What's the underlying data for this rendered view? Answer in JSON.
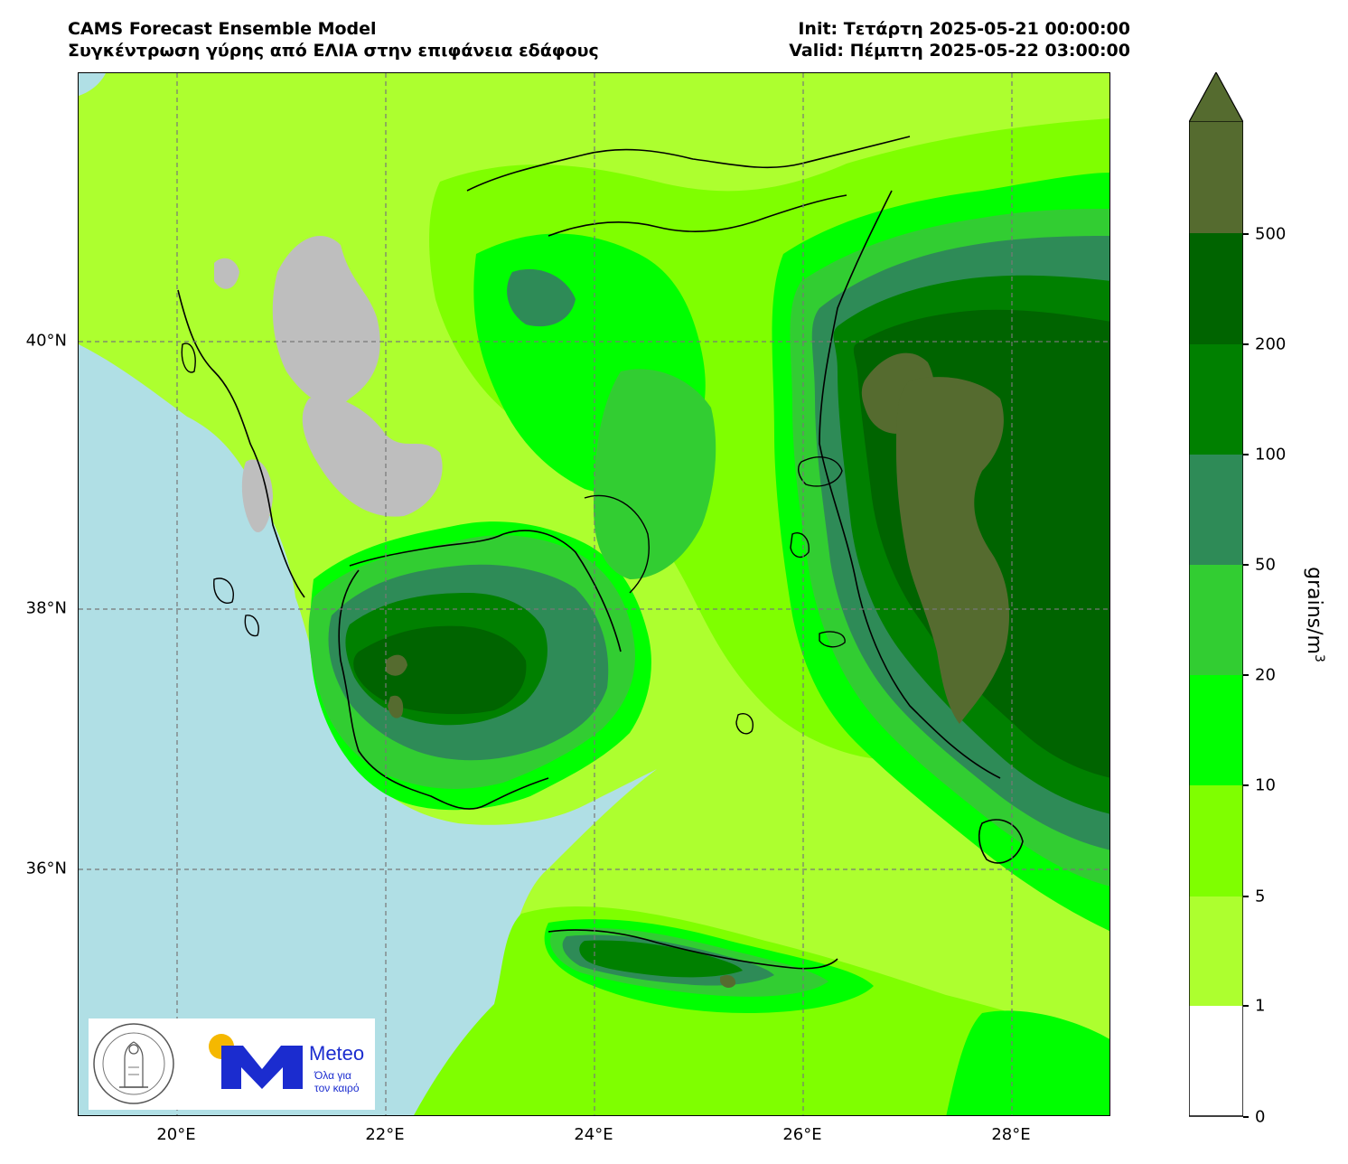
{
  "header": {
    "model_name": "CAMS Forecast Ensemble Model",
    "variable_title": "Συγκέντρωση γύρης από ΕΛΙΑ στην επιφάνεια εδάφους",
    "init_text": "Init: Τετάρτη 2025-05-21 00:00:00",
    "valid_text": "Valid: Πέμπτη 2025-05-22 03:00:00"
  },
  "map": {
    "longitude_ticks": [
      "20°E",
      "22°E",
      "24°E",
      "26°E",
      "28°E"
    ],
    "latitude_ticks": [
      "40°N",
      "38°N",
      "36°N"
    ],
    "sea_color": "#b0dfe5",
    "missing_color": "#bebebe",
    "coast_color": "#000000",
    "gridline_style": "dashed"
  },
  "colorbar": {
    "unit_label": "grains/m",
    "unit_exponent": "3",
    "extend": "max",
    "tick_labels": [
      "0",
      "1",
      "5",
      "10",
      "20",
      "50",
      "100",
      "200",
      "500"
    ],
    "level_colors": [
      "#ffffff",
      "#adff2f",
      "#7fff00",
      "#00ff00",
      "#32cd32",
      "#2e8b57",
      "#008000",
      "#006400",
      "#556b2f"
    ]
  },
  "logos": {
    "institution_seal_text": "ΕΘΝΙΚΟΝ ΑΣΤΕΡΟΣΚΟΠΕΙΟΝ ΑΘΗΝΩΝ · NATIONAL OBSERVATORY OF ATHENS",
    "brand_name": "Meteo",
    "brand_tagline": "Όλα για τον καιρό",
    "brand_blue": "#1b2ccf",
    "sun_yellow": "#f5b800"
  }
}
